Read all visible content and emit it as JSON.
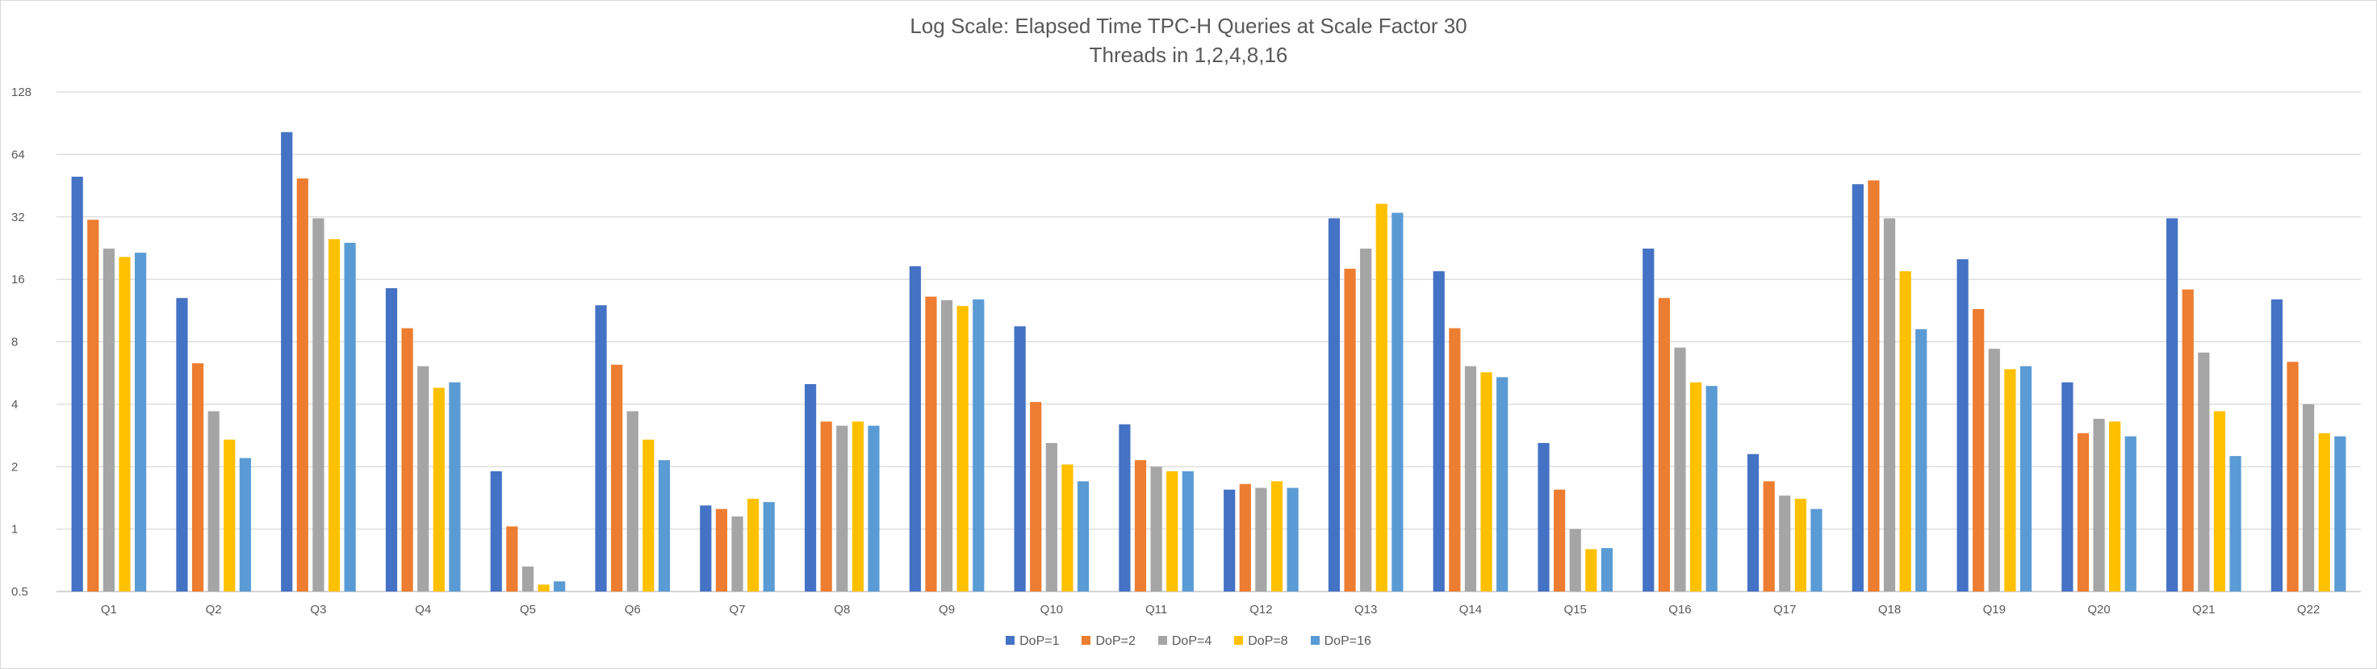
{
  "chart_data": {
    "type": "bar",
    "title": "Log Scale:  Elapsed Time TPC-H Queries at Scale Factor 30",
    "subtitle": "Threads in 1,2,4,8,16",
    "y_scale": "log2",
    "ylim": [
      0.5,
      128
    ],
    "y_ticks": [
      "0.5",
      "1",
      "2",
      "4",
      "8",
      "16",
      "32",
      "64",
      "128"
    ],
    "grid": true,
    "legend_position": "bottom",
    "categories": [
      "Q1",
      "Q2",
      "Q3",
      "Q4",
      "Q5",
      "Q6",
      "Q7",
      "Q8",
      "Q9",
      "Q10",
      "Q11",
      "Q12",
      "Q13",
      "Q14",
      "Q15",
      "Q16",
      "Q17",
      "Q18",
      "Q19",
      "Q20",
      "Q21",
      "Q22"
    ],
    "series": [
      {
        "name": "DoP=1",
        "color": "#4472c4",
        "values": [
          50,
          13,
          82,
          14.5,
          1.9,
          12,
          1.3,
          5,
          18.5,
          9.5,
          3.2,
          1.55,
          31.5,
          17.5,
          2.6,
          22.5,
          2.3,
          46,
          20,
          5.1,
          31.5,
          12.8
        ]
      },
      {
        "name": "DoP=2",
        "color": "#ed7d31",
        "values": [
          31,
          6.3,
          49,
          9.3,
          1.03,
          6.2,
          1.25,
          3.3,
          13.2,
          4.1,
          2.15,
          1.65,
          18,
          9.3,
          1.55,
          13,
          1.7,
          48,
          11.5,
          2.9,
          14.3,
          6.4
        ]
      },
      {
        "name": "DoP=4",
        "color": "#a5a5a5",
        "values": [
          22.5,
          3.7,
          31.5,
          6.1,
          0.66,
          3.7,
          1.15,
          3.15,
          12.7,
          2.6,
          2,
          1.58,
          22.5,
          6.1,
          1.0,
          7.5,
          1.45,
          31.5,
          7.4,
          3.4,
          7.1,
          4.0
        ]
      },
      {
        "name": "DoP=8",
        "color": "#ffc000",
        "values": [
          20.5,
          2.7,
          25,
          4.8,
          0.54,
          2.7,
          1.4,
          3.3,
          11.9,
          2.05,
          1.9,
          1.7,
          37,
          5.7,
          0.8,
          5.1,
          1.4,
          17.5,
          5.9,
          3.3,
          3.7,
          2.9
        ]
      },
      {
        "name": "DoP=16",
        "color": "#5b9bd5",
        "values": [
          21.5,
          2.2,
          24,
          5.1,
          0.56,
          2.15,
          1.35,
          3.15,
          12.8,
          1.7,
          1.9,
          1.58,
          33.5,
          5.4,
          0.81,
          4.9,
          1.25,
          9.2,
          6.1,
          2.8,
          2.25,
          2.8
        ]
      }
    ]
  }
}
